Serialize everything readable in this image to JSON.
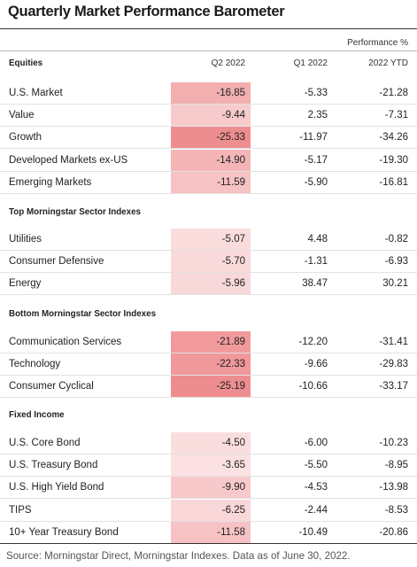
{
  "title": "Quarterly Market Performance Barometer",
  "performance_label": "Performance %",
  "columns": [
    "Q2 2022",
    "Q1 2022",
    "2022 YTD"
  ],
  "colors": {
    "heat_low": "#fbe4e4",
    "heat_high": "#ee8a8c"
  },
  "sections": [
    {
      "name": "Equities",
      "rows": [
        {
          "label": "U.S. Market",
          "q2": "-16.85",
          "q1": "-5.33",
          "ytd": "-21.28"
        },
        {
          "label": "Value",
          "q2": "-9.44",
          "q1": "2.35",
          "ytd": "-7.31"
        },
        {
          "label": "Growth",
          "q2": "-25.33",
          "q1": "-11.97",
          "ytd": "-34.26"
        },
        {
          "label": "Developed Markets ex-US",
          "q2": "-14.90",
          "q1": "-5.17",
          "ytd": "-19.30"
        },
        {
          "label": "Emerging Markets",
          "q2": "-11.59",
          "q1": "-5.90",
          "ytd": "-16.81"
        }
      ]
    },
    {
      "name": "Top Morningstar Sector Indexes",
      "rows": [
        {
          "label": "Utilities",
          "q2": "-5.07",
          "q1": "4.48",
          "ytd": "-0.82"
        },
        {
          "label": "Consumer Defensive",
          "q2": "-5.70",
          "q1": "-1.31",
          "ytd": "-6.93"
        },
        {
          "label": "Energy",
          "q2": "-5.96",
          "q1": "38.47",
          "ytd": "30.21"
        }
      ]
    },
    {
      "name": "Bottom Morningstar Sector Indexes",
      "rows": [
        {
          "label": "Communication Services",
          "q2": "-21.89",
          "q1": "-12.20",
          "ytd": "-31.41"
        },
        {
          "label": "Technology",
          "q2": "-22.33",
          "q1": "-9.66",
          "ytd": "-29.83"
        },
        {
          "label": "Consumer Cyclical",
          "q2": "-25.19",
          "q1": "-10.66",
          "ytd": "-33.17"
        }
      ]
    },
    {
      "name": "Fixed Income",
      "rows": [
        {
          "label": "U.S. Core Bond",
          "q2": "-4.50",
          "q1": "-6.00",
          "ytd": "-10.23"
        },
        {
          "label": "U.S. Treasury Bond",
          "q2": "-3.65",
          "q1": "-5.50",
          "ytd": "-8.95"
        },
        {
          "label": "U.S. High Yield Bond",
          "q2": "-9.90",
          "q1": "-4.53",
          "ytd": "-13.98"
        },
        {
          "label": "TIPS",
          "q2": "-6.25",
          "q1": "-2.44",
          "ytd": "-8.53"
        },
        {
          "label": "10+ Year Treasury Bond",
          "q2": "-11.58",
          "q1": "-10.49",
          "ytd": "-20.86"
        }
      ]
    }
  ],
  "source": "Source: Morningstar Direct, Morningstar Indexes. Data as of June 30, 2022."
}
